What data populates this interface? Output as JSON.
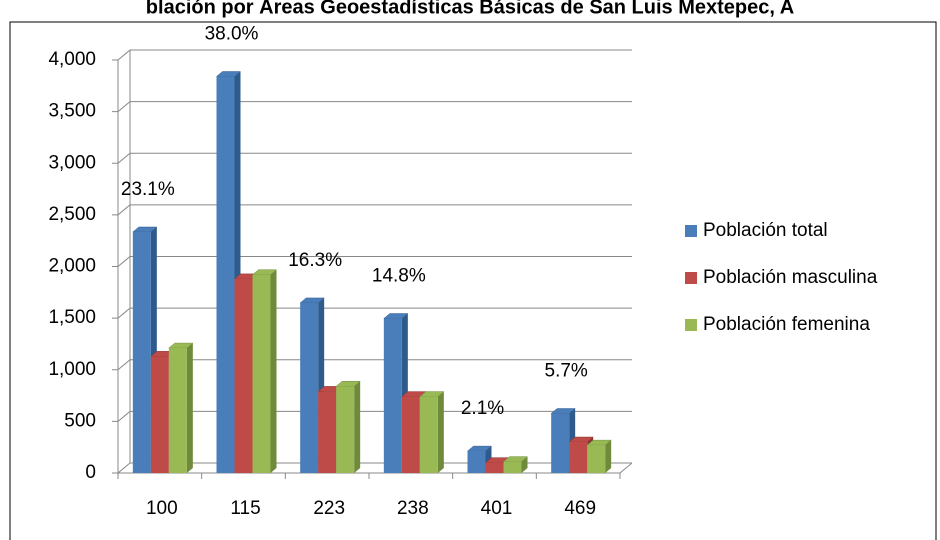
{
  "chart_data": {
    "type": "bar3d",
    "title": "blación por Áreas Geoestadísticas Básicas de San Luis Mextepec, A",
    "categories": [
      "100",
      "115",
      "223",
      "238",
      "401",
      "469"
    ],
    "series": [
      {
        "name": "Población total",
        "color": "#4a7ebb",
        "side": "#2f5a8c",
        "values": [
          2334,
          3840,
          1647,
          1496,
          212,
          576
        ]
      },
      {
        "name": "Población masculina",
        "color": "#be4b48",
        "side": "#8c3331",
        "values": [
          1130,
          1880,
          790,
          740,
          100,
          300
        ]
      },
      {
        "name": "Población femenina",
        "color": "#98b954",
        "side": "#6e8a3a",
        "values": [
          1210,
          1920,
          840,
          740,
          110,
          270
        ]
      }
    ],
    "shares": [
      {
        "value": 23.1,
        "label": "23.1%"
      },
      {
        "value": 38.0,
        "label": "38.0%"
      },
      {
        "value": 16.3,
        "label": "16.3%"
      },
      {
        "value": 14.8,
        "label": "14.8%"
      },
      {
        "value": 2.1,
        "label": "2.1%"
      },
      {
        "value": 5.7,
        "label": "5.7%"
      }
    ],
    "ylim": [
      0,
      4000
    ],
    "yticks": [
      0,
      500,
      {
        "value": 1000,
        "label": "1,000"
      },
      {
        "value": 1500,
        "label": "1,500"
      },
      {
        "value": 2000,
        "label": "2,000"
      },
      {
        "value": 2500,
        "label": "2,500"
      },
      {
        "value": 3000,
        "label": "3,000"
      },
      {
        "value": 3500,
        "label": "3,500"
      },
      {
        "value": 4000,
        "label": "4,000"
      }
    ],
    "grid": true,
    "legend": "right"
  }
}
